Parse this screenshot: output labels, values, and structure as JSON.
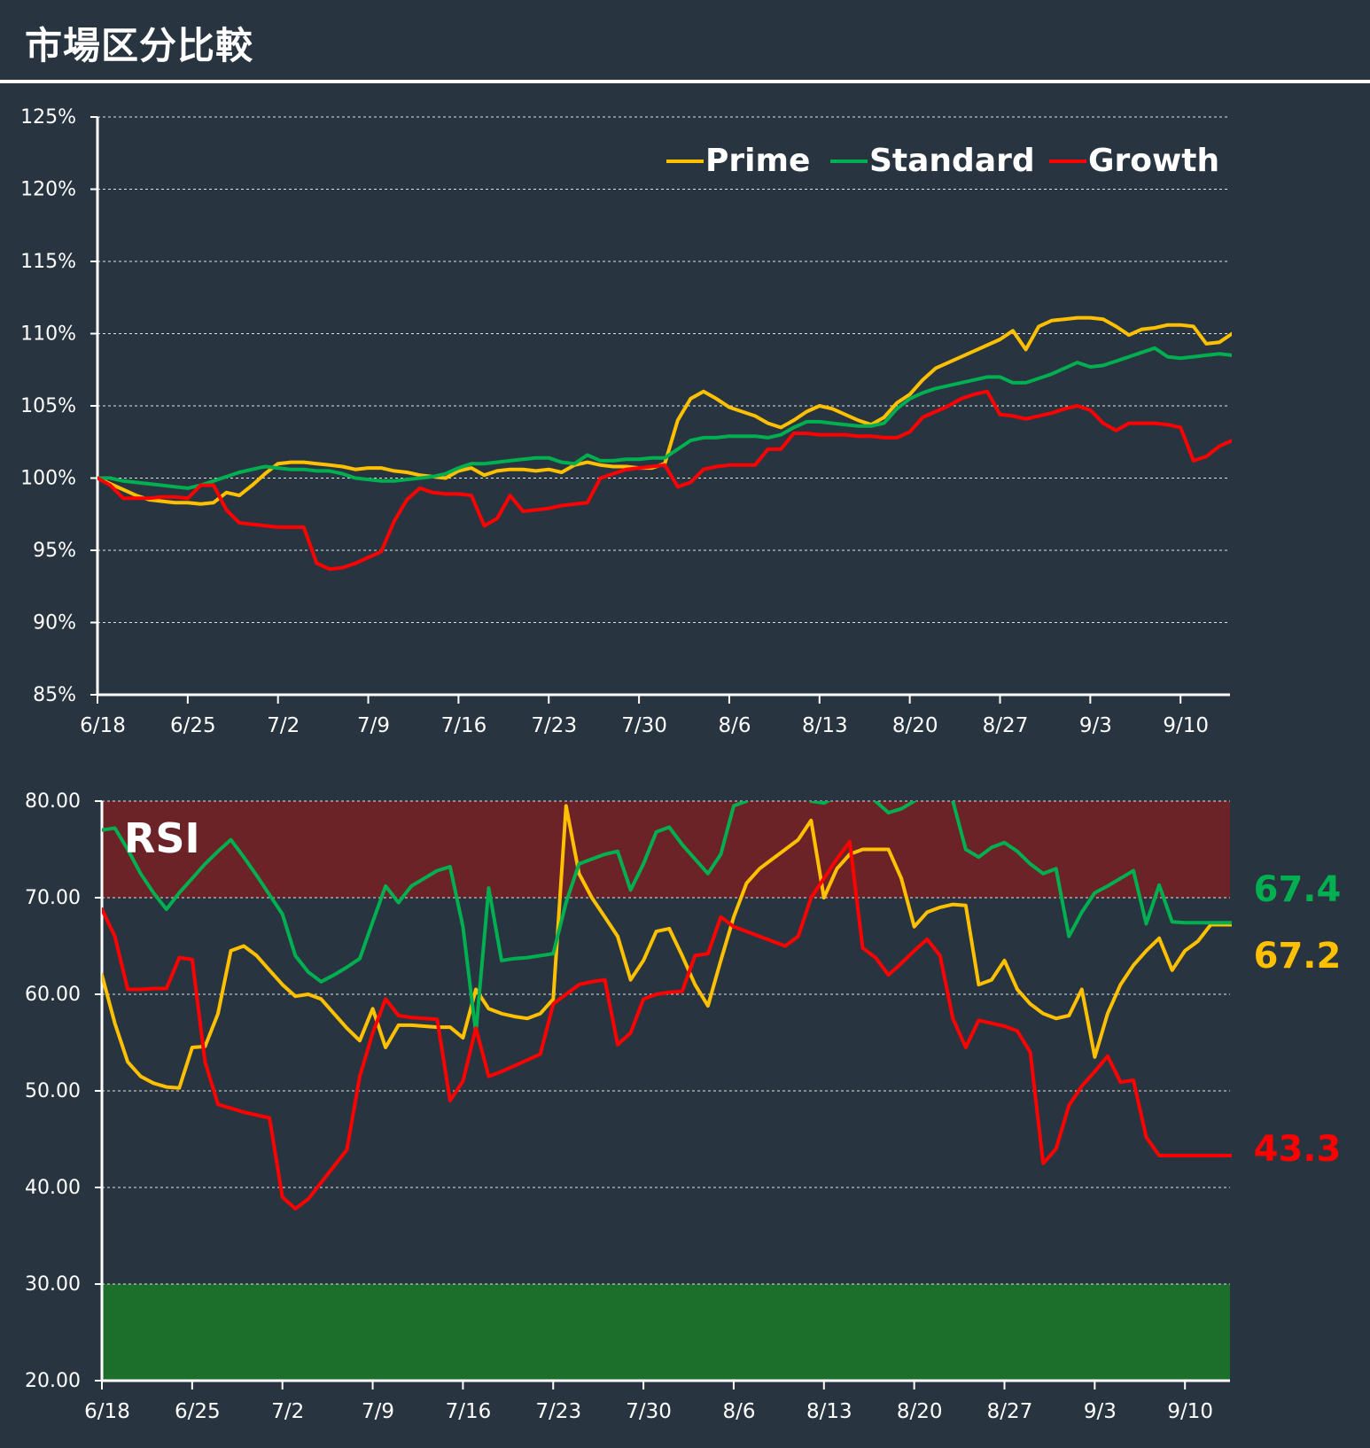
{
  "page": {
    "title": "市場区分比較",
    "colors": {
      "background": "#283540",
      "prime": "#FFC000",
      "standard": "#00B050",
      "growth": "#FF0000",
      "overbought_zone": "#6B2328",
      "oversold_zone": "#1C6E2B",
      "axis": "#FFFFFF",
      "grid": "#FFFFFF"
    }
  },
  "chart_data": [
    {
      "type": "line",
      "x_tick_labels": [
        "6/18",
        "6/25",
        "7/2",
        "7/9",
        "7/16",
        "7/23",
        "7/30",
        "8/6",
        "8/13",
        "8/20",
        "8/27",
        "9/3",
        "9/10"
      ],
      "y_tick_labels": [
        "85%",
        "90%",
        "95%",
        "100%",
        "105%",
        "110%",
        "115%",
        "120%",
        "125%"
      ],
      "ylim": [
        85,
        125
      ],
      "grid": "horizontal dashed",
      "legend_position": "top-right",
      "x": [
        0,
        1,
        2,
        3,
        4,
        5,
        6,
        7,
        8,
        9,
        10,
        11,
        12,
        13,
        14,
        15,
        16,
        17,
        18,
        19,
        20,
        21,
        22,
        23,
        24,
        25,
        26,
        27,
        28,
        29,
        30,
        31,
        32,
        33,
        34,
        35,
        36,
        37,
        38,
        39,
        40,
        41,
        42,
        43,
        44,
        45,
        46,
        47,
        48,
        49,
        50,
        51,
        52,
        53,
        54,
        55,
        56,
        57,
        58,
        59,
        60,
        61,
        62,
        63,
        64,
        65,
        66,
        67,
        68,
        69,
        70,
        71,
        72,
        73,
        74,
        75,
        76,
        77,
        78,
        79,
        80,
        81,
        82,
        83,
        84,
        85,
        86,
        87,
        88
      ],
      "series": [
        {
          "name": "Prime",
          "color": "#FFC000",
          "values": [
            100.0,
            99.6,
            99.2,
            98.8,
            98.5,
            98.4,
            98.3,
            98.3,
            98.2,
            98.3,
            99.0,
            98.8,
            99.5,
            100.3,
            101.0,
            101.1,
            101.1,
            101.0,
            100.9,
            100.8,
            100.6,
            100.7,
            100.7,
            100.5,
            100.4,
            100.2,
            100.1,
            100.0,
            100.5,
            100.7,
            100.2,
            100.5,
            100.6,
            100.6,
            100.5,
            100.6,
            100.4,
            100.9,
            101.1,
            100.9,
            100.8,
            100.8,
            100.7,
            100.7,
            101.0,
            104.0,
            105.5,
            106.0,
            105.5,
            104.9,
            104.6,
            104.3,
            103.8,
            103.5,
            104.0,
            104.6,
            105.0,
            104.8,
            104.4,
            104.0,
            103.7,
            104.2,
            105.2,
            105.8,
            106.8,
            107.6,
            108.0,
            108.4,
            108.8,
            109.2,
            109.6,
            110.2,
            108.9,
            110.5,
            110.9,
            111.0,
            111.1,
            111.1,
            111.0,
            110.5,
            109.9,
            110.3,
            110.4,
            110.6,
            110.6,
            110.5,
            109.3,
            109.4,
            110.0
          ]
        },
        {
          "name": "Standard",
          "color": "#00B050",
          "values": [
            100.0,
            100.0,
            99.8,
            99.7,
            99.6,
            99.5,
            99.4,
            99.3,
            99.5,
            99.8,
            100.1,
            100.4,
            100.6,
            100.8,
            100.7,
            100.6,
            100.6,
            100.5,
            100.5,
            100.3,
            100.0,
            99.9,
            99.8,
            99.8,
            99.9,
            100.0,
            100.1,
            100.3,
            100.7,
            101.0,
            101.0,
            101.1,
            101.2,
            101.3,
            101.4,
            101.4,
            101.1,
            101.0,
            101.6,
            101.2,
            101.2,
            101.3,
            101.3,
            101.4,
            101.4,
            102.0,
            102.6,
            102.8,
            102.8,
            102.9,
            102.9,
            102.9,
            102.8,
            103.0,
            103.5,
            103.9,
            103.9,
            103.8,
            103.7,
            103.6,
            103.6,
            103.8,
            104.8,
            105.5,
            105.9,
            106.2,
            106.4,
            106.6,
            106.8,
            107.0,
            107.0,
            106.6,
            106.6,
            106.9,
            107.2,
            107.6,
            108.0,
            107.7,
            107.8,
            108.1,
            108.4,
            108.7,
            109.0,
            108.4,
            108.3,
            108.4,
            108.5,
            108.6,
            108.5
          ]
        },
        {
          "name": "Growth",
          "color": "#FF0000",
          "values": [
            100.0,
            99.5,
            98.6,
            98.6,
            98.6,
            98.7,
            98.7,
            98.6,
            99.5,
            99.5,
            97.8,
            96.9,
            96.8,
            96.7,
            96.6,
            96.6,
            96.6,
            94.1,
            93.7,
            93.8,
            94.1,
            94.5,
            94.9,
            97.0,
            98.5,
            99.3,
            99.0,
            98.9,
            98.9,
            98.8,
            96.7,
            97.2,
            98.8,
            97.7,
            97.8,
            97.9,
            98.1,
            98.2,
            98.3,
            100.0,
            100.3,
            100.6,
            100.7,
            100.8,
            100.9,
            99.4,
            99.7,
            100.6,
            100.8,
            100.9,
            100.9,
            100.9,
            102.0,
            102.0,
            103.1,
            103.1,
            103.0,
            103.0,
            103.0,
            102.9,
            102.9,
            102.8,
            102.8,
            103.2,
            104.2,
            104.6,
            105.0,
            105.5,
            105.8,
            106.0,
            104.4,
            104.3,
            104.1,
            104.3,
            104.5,
            104.8,
            105.0,
            104.7,
            103.8,
            103.3,
            103.8,
            103.8,
            103.8,
            103.7,
            103.5,
            101.2,
            101.5,
            102.2,
            102.6
          ]
        }
      ]
    },
    {
      "type": "line",
      "title": "RSI",
      "x_tick_labels": [
        "6/18",
        "6/25",
        "7/2",
        "7/9",
        "7/16",
        "7/23",
        "7/30",
        "8/6",
        "8/13",
        "8/20",
        "8/27",
        "9/3",
        "9/10"
      ],
      "y_tick_labels": [
        "20.00",
        "30.00",
        "40.00",
        "50.00",
        "60.00",
        "70.00",
        "80.00"
      ],
      "ylim": [
        20,
        80
      ],
      "grid": "horizontal dashed",
      "zones": [
        {
          "name": "overbought",
          "from": 70,
          "to": 80,
          "color": "#6B2328"
        },
        {
          "name": "oversold",
          "from": 20,
          "to": 30,
          "color": "#1C6E2B"
        }
      ],
      "end_labels": [
        {
          "series": "Standard",
          "text": "67.4",
          "color": "#00B050"
        },
        {
          "series": "Prime",
          "text": "67.2",
          "color": "#FFC000"
        },
        {
          "series": "Growth",
          "text": "43.3",
          "color": "#FF0000"
        }
      ],
      "x": [
        0,
        1,
        2,
        3,
        4,
        5,
        6,
        7,
        8,
        9,
        10,
        11,
        12,
        13,
        14,
        15,
        16,
        17,
        18,
        19,
        20,
        21,
        22,
        23,
        24,
        25,
        26,
        27,
        28,
        29,
        30,
        31,
        32,
        33,
        34,
        35,
        36,
        37,
        38,
        39,
        40,
        41,
        42,
        43,
        44,
        45,
        46,
        47,
        48,
        49,
        50,
        51,
        52,
        53,
        54,
        55,
        56,
        57,
        58,
        59,
        60,
        61,
        62,
        63,
        64,
        65,
        66,
        67,
        68,
        69,
        70,
        71,
        72,
        73,
        74,
        75,
        76,
        77,
        78,
        79,
        80,
        81,
        82,
        83,
        84,
        85,
        86,
        87,
        88
      ],
      "series": [
        {
          "name": "Prime",
          "color": "#FFC000",
          "values": [
            62.0,
            57.0,
            53.0,
            51.5,
            50.8,
            50.4,
            50.3,
            54.5,
            54.6,
            58.0,
            64.5,
            65.0,
            64.0,
            62.5,
            61.0,
            59.8,
            60.0,
            59.5,
            58.0,
            56.5,
            55.2,
            58.5,
            54.5,
            56.8,
            56.8,
            56.7,
            56.6,
            56.6,
            55.5,
            60.5,
            58.5,
            58.0,
            57.7,
            57.5,
            58.0,
            59.5,
            79.5,
            72.5,
            70.0,
            68.0,
            66.0,
            61.5,
            63.5,
            66.5,
            66.8,
            64.0,
            61.0,
            58.8,
            63.5,
            68.0,
            71.5,
            73.0,
            74.0,
            75.0,
            76.0,
            78.0,
            70.0,
            73.0,
            74.5,
            75.0,
            75.0,
            75.0,
            72.0,
            67.0,
            68.5,
            69.0,
            69.3,
            69.2,
            61.0,
            61.5,
            63.5,
            60.5,
            59.0,
            58.0,
            57.5,
            57.8,
            60.5,
            53.5,
            58.0,
            61.0,
            63.0,
            64.5,
            65.8,
            62.5,
            64.5,
            65.5,
            67.2,
            67.2,
            67.2
          ]
        },
        {
          "name": "Standard",
          "color": "#00B050",
          "values": [
            77.0,
            77.2,
            75.0,
            72.5,
            70.5,
            68.8,
            70.5,
            72.0,
            73.5,
            74.8,
            76.0,
            74.2,
            72.3,
            70.3,
            68.3,
            64.0,
            62.3,
            61.3,
            62.0,
            62.8,
            63.7,
            67.5,
            71.2,
            69.5,
            71.2,
            72.0,
            72.8,
            73.2,
            67.0,
            56.0,
            71.0,
            63.5,
            63.7,
            63.8,
            64.0,
            64.2,
            69.5,
            73.5,
            74.0,
            74.5,
            74.8,
            70.8,
            73.5,
            76.8,
            77.3,
            75.5,
            74.0,
            72.5,
            74.5,
            79.5,
            80.0,
            82.0,
            83.0,
            83.5,
            82.5,
            80.0,
            79.8,
            80.5,
            81.0,
            81.5,
            80.0,
            78.8,
            79.2,
            80.0,
            81.0,
            82.0,
            80.0,
            75.0,
            74.2,
            75.2,
            75.7,
            74.8,
            73.5,
            72.5,
            73.0,
            66.0,
            68.5,
            70.5,
            71.2,
            72.0,
            72.8,
            67.3,
            71.3,
            67.5,
            67.4,
            67.4,
            67.4,
            67.4,
            67.4
          ]
        },
        {
          "name": "Growth",
          "color": "#FF0000",
          "values": [
            68.8,
            66.0,
            60.5,
            60.5,
            60.6,
            60.6,
            63.8,
            63.6,
            53.0,
            48.6,
            48.2,
            47.8,
            47.5,
            47.2,
            39.0,
            37.8,
            38.8,
            40.5,
            42.2,
            43.9,
            51.5,
            56.0,
            59.5,
            57.8,
            57.6,
            57.5,
            57.4,
            49.0,
            51.0,
            56.5,
            51.5,
            52.0,
            52.6,
            53.2,
            53.8,
            59.0,
            60.0,
            61.0,
            61.3,
            61.5,
            54.8,
            56.0,
            59.5,
            60.0,
            60.2,
            60.3,
            64.0,
            64.2,
            68.0,
            67.0,
            66.5,
            66.0,
            65.5,
            65.0,
            66.0,
            70.0,
            72.0,
            74.0,
            75.8,
            64.8,
            63.8,
            62.0,
            63.2,
            64.5,
            65.7,
            64.0,
            57.5,
            54.5,
            57.3,
            57.0,
            56.7,
            56.2,
            54.0,
            42.5,
            44.0,
            48.5,
            50.5,
            52.0,
            53.6,
            50.9,
            51.1,
            45.2,
            43.3,
            43.3,
            43.3,
            43.3,
            43.3,
            43.3,
            43.3
          ]
        }
      ]
    }
  ]
}
